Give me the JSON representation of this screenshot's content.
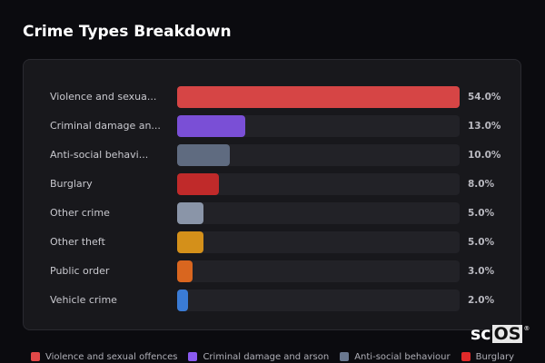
{
  "title": "Crime Types Breakdown",
  "rows": [
    {
      "label": "Violence and sexua...",
      "pct": "54.0%",
      "value": 54.0,
      "color": "#d64545"
    },
    {
      "label": "Criminal damage an...",
      "pct": "13.0%",
      "value": 13.0,
      "color": "#7a4fd6"
    },
    {
      "label": "Anti-social behavi...",
      "pct": "10.0%",
      "value": 10.0,
      "color": "#5f6b80"
    },
    {
      "label": "Burglary",
      "pct": "8.0%",
      "value": 8.0,
      "color": "#c02a2a"
    },
    {
      "label": "Other crime",
      "pct": "5.0%",
      "value": 5.0,
      "color": "#8a95a8"
    },
    {
      "label": "Other theft",
      "pct": "5.0%",
      "value": 5.0,
      "color": "#d4901a"
    },
    {
      "label": "Public order",
      "pct": "3.0%",
      "value": 3.0,
      "color": "#d9661f"
    },
    {
      "label": "Vehicle crime",
      "pct": "2.0%",
      "value": 2.0,
      "color": "#3a7bd5"
    }
  ],
  "legend": [
    {
      "label": "Violence and sexual offences",
      "color": "#e04848"
    },
    {
      "label": "Criminal damage and arson",
      "color": "#8a5af0"
    },
    {
      "label": "Anti-social behaviour",
      "color": "#6a7890"
    },
    {
      "label": "Burglary",
      "color": "#e02a2a"
    }
  ],
  "watermark": {
    "sc": "sc",
    "os": "OS",
    "reg": "®"
  },
  "chart_data": {
    "type": "bar",
    "orientation": "horizontal",
    "title": "Crime Types Breakdown",
    "categories": [
      "Violence and sexual offences",
      "Criminal damage and arson",
      "Anti-social behaviour",
      "Burglary",
      "Other crime",
      "Other theft",
      "Public order",
      "Vehicle crime"
    ],
    "display_labels": [
      "Violence and sexua...",
      "Criminal damage an...",
      "Anti-social behavi...",
      "Burglary",
      "Other crime",
      "Other theft",
      "Public order",
      "Vehicle crime"
    ],
    "values": [
      54.0,
      13.0,
      10.0,
      8.0,
      5.0,
      5.0,
      3.0,
      2.0
    ],
    "unit": "%",
    "xlabel": "",
    "ylabel": "",
    "grid": false,
    "legend_position": "bottom",
    "legend_entries": [
      "Violence and sexual offences",
      "Criminal damage and arson",
      "Anti-social behaviour",
      "Burglary"
    ]
  }
}
